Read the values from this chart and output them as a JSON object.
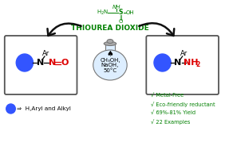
{
  "title_chemical": "THIOUREA DIOXIDE",
  "title_color": "#008000",
  "bg_color": "#ffffff",
  "flask_text1": "CH₃OH,",
  "flask_text2": "NaOH,",
  "flask_text3": "50°C",
  "bullet_color": "#3355ff",
  "bullet_text": "⇒  H,Aryl and Alkyl",
  "checkmarks": [
    "√ Metal-Free",
    "√ Eco-friendly reductant",
    "√ 69%-81% Yield",
    "√ 22 Examples"
  ],
  "check_color": "#008000",
  "no_color": "#dd0000",
  "nh2_color": "#dd0000",
  "black": "#000000",
  "green": "#008000",
  "arrow_color": "#111111",
  "box_edge_color": "#555555"
}
